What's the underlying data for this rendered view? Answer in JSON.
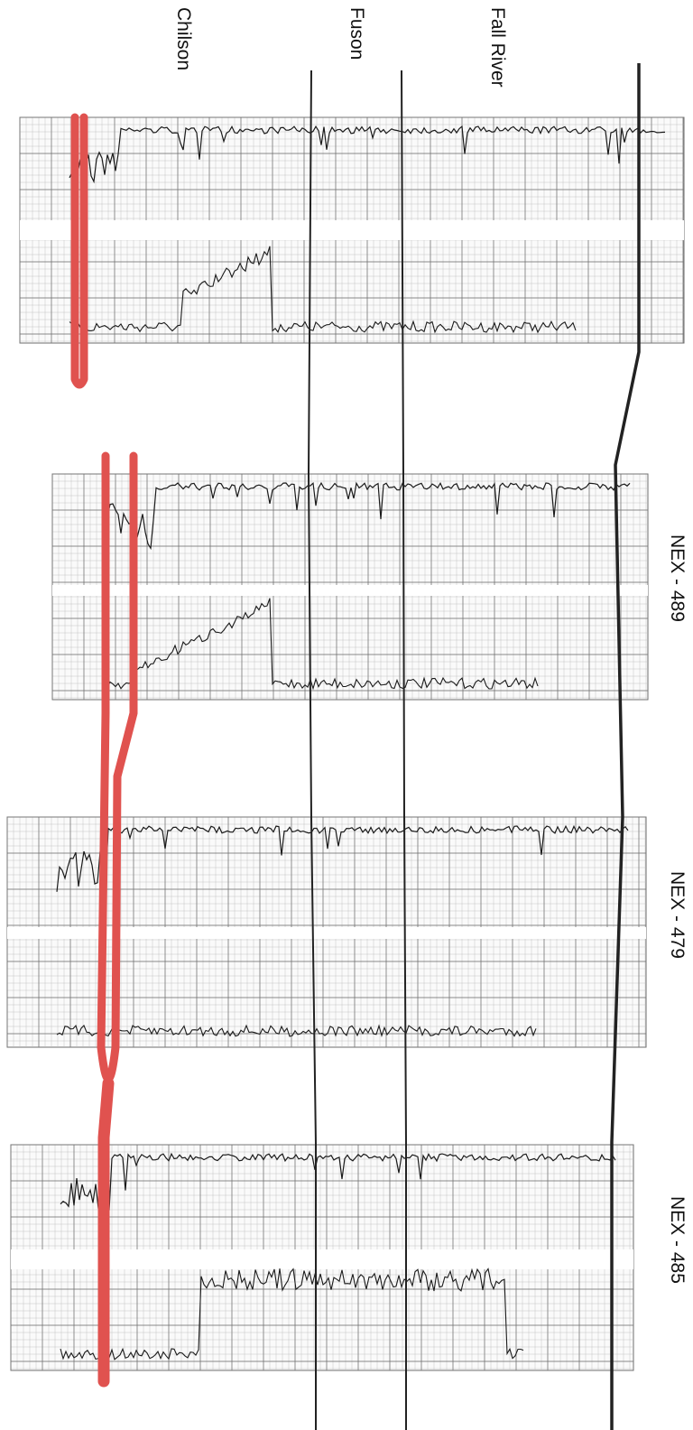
{
  "formations": [
    {
      "id": "chilson",
      "label": "Chilson"
    },
    {
      "id": "fuson",
      "label": "Fuson"
    },
    {
      "id": "fall_river",
      "label": "Fall River"
    }
  ],
  "wells": [
    {
      "id": "w1",
      "label": ""
    },
    {
      "id": "w2",
      "label": "NEX - 489"
    },
    {
      "id": "w3",
      "label": "NEX - 479"
    },
    {
      "id": "w4",
      "label": "NEX - 485"
    }
  ],
  "colors": {
    "paper": "#ffffff",
    "grid_minor": "#b9b9b9",
    "grid_major": "#6e6e6e",
    "log_trace": "#1a1a1a",
    "correlation_line": "#222222",
    "sand_highlight": "#e0524f"
  }
}
